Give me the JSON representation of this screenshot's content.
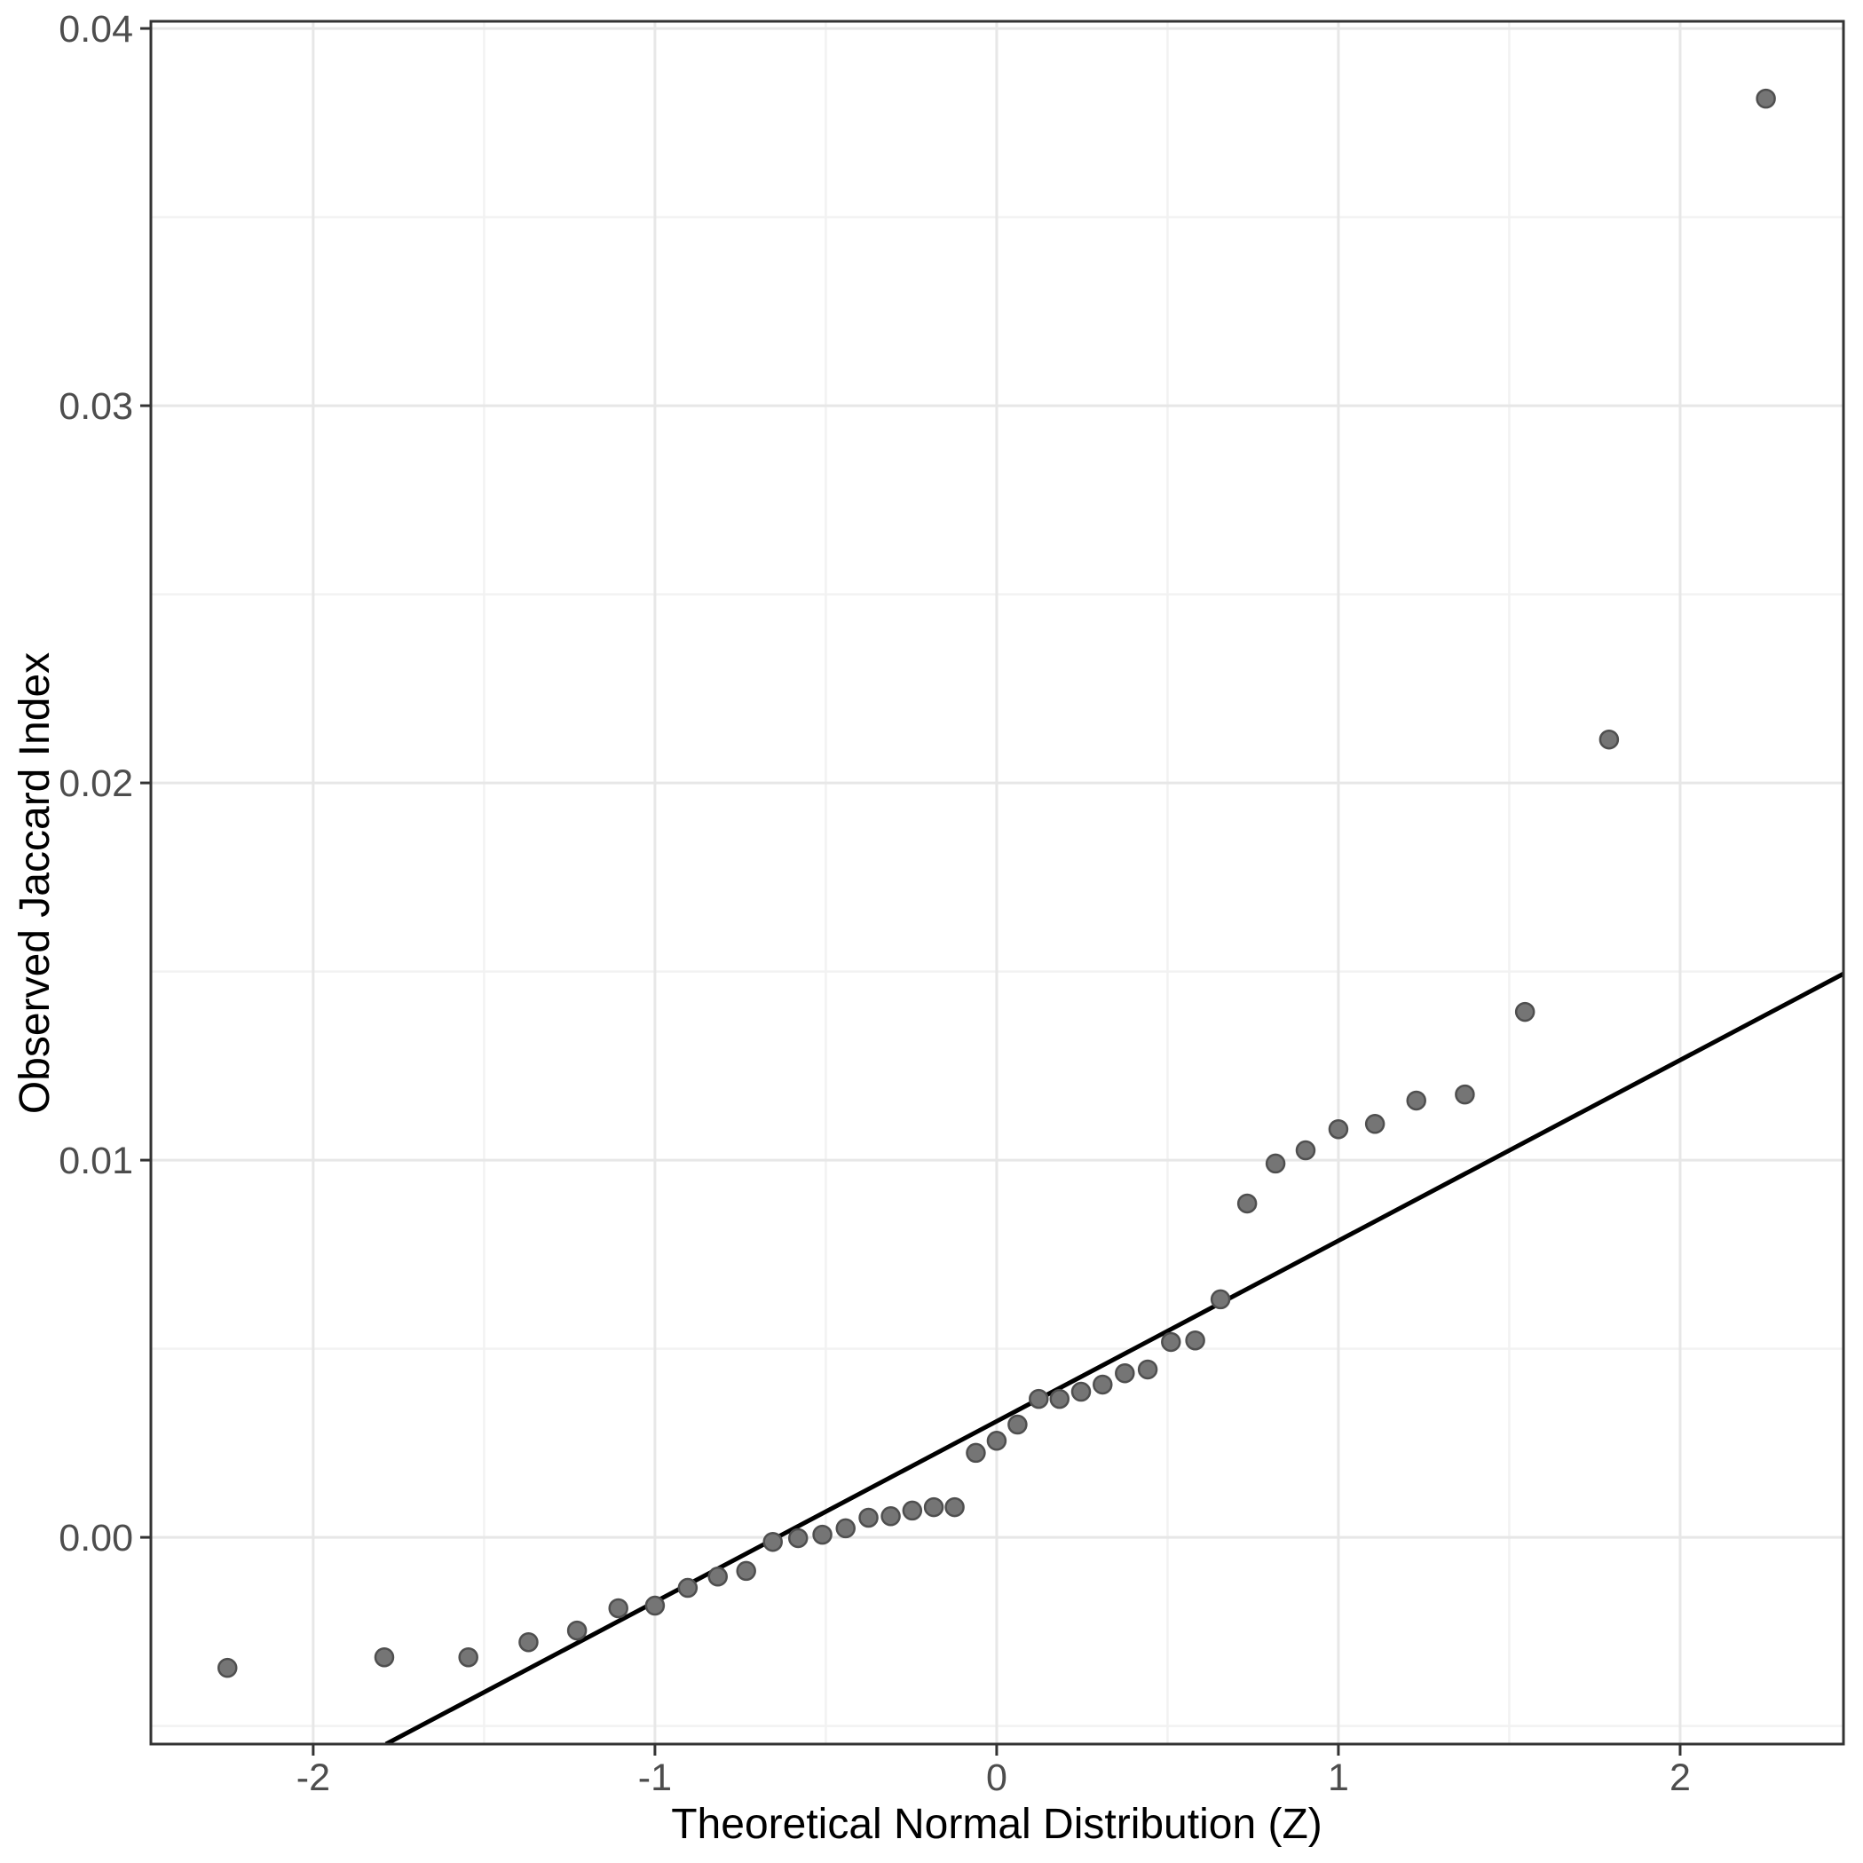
{
  "chart_data": {
    "type": "scatter",
    "title": "",
    "xlabel": "Theoretical Normal Distribution (Z)",
    "ylabel": "Observed Jaccard Index",
    "xlim": [
      -2.475,
      2.478
    ],
    "ylim": [
      -0.00548,
      0.04019
    ],
    "x_ticks": [
      -2,
      -1,
      0,
      1,
      2
    ],
    "x_tick_labels": [
      "-2",
      "-1",
      "0",
      "1",
      "2"
    ],
    "y_ticks": [
      0.0,
      0.01,
      0.02,
      0.03,
      0.04
    ],
    "y_tick_labels": [
      "0.00",
      "0.01",
      "0.02",
      "0.03",
      "0.04"
    ],
    "x_minor_ticks": [
      -1.5,
      -0.5,
      0.5,
      1.5
    ],
    "y_minor_ticks": [
      -0.005,
      0.005,
      0.015,
      0.025,
      0.035
    ],
    "grid": "major+minor",
    "legend": "none",
    "points": [
      [
        -2.251,
        -0.00346
      ],
      [
        -1.792,
        -0.00318
      ],
      [
        -1.546,
        -0.00318
      ],
      [
        -1.37,
        -0.00278
      ],
      [
        -1.228,
        -0.00247
      ],
      [
        -1.107,
        -0.00188
      ],
      [
        -1.0,
        -0.00181
      ],
      [
        -0.904,
        -0.00134
      ],
      [
        -0.816,
        -0.00104
      ],
      [
        -0.733,
        -0.00089
      ],
      [
        -0.655,
        -0.00012
      ],
      [
        -0.581,
        -2e-05
      ],
      [
        -0.51,
        7e-05
      ],
      [
        -0.442,
        0.00024
      ],
      [
        -0.375,
        0.00052
      ],
      [
        -0.31,
        0.00056
      ],
      [
        -0.247,
        0.00071
      ],
      [
        -0.184,
        0.0008
      ],
      [
        -0.123,
        0.0008
      ],
      [
        -0.061,
        0.00224
      ],
      [
        0.0,
        0.00256
      ],
      [
        0.061,
        0.00299
      ],
      [
        0.123,
        0.00367
      ],
      [
        0.184,
        0.00367
      ],
      [
        0.247,
        0.00386
      ],
      [
        0.31,
        0.00405
      ],
      [
        0.375,
        0.00435
      ],
      [
        0.442,
        0.00445
      ],
      [
        0.51,
        0.00518
      ],
      [
        0.581,
        0.00522
      ],
      [
        0.655,
        0.00631
      ],
      [
        0.733,
        0.00885
      ],
      [
        0.816,
        0.00991
      ],
      [
        0.904,
        0.01026
      ],
      [
        1.0,
        0.01082
      ],
      [
        1.107,
        0.01096
      ],
      [
        1.228,
        0.01158
      ],
      [
        1.37,
        0.01174
      ],
      [
        1.546,
        0.01393
      ],
      [
        1.792,
        0.02115
      ],
      [
        2.251,
        0.03814
      ]
    ],
    "ref_line": {
      "x": [
        -1.787,
        2.478
      ],
      "y": [
        -0.00548,
        0.01494
      ],
      "slope": 0.00479,
      "intercept": 0.00308
    }
  },
  "colors": {
    "background": "#ffffff",
    "panel_background": "#ffffff",
    "panel_border": "#333333",
    "grid_major": "#e7e7e7",
    "grid_minor": "#f2f2f2",
    "point_fill": "#757575",
    "point_stroke": "#4f4f4f",
    "ref_line": "#000000",
    "tick_mark": "#333333",
    "tick_label": "#4d4d4d",
    "axis_title": "#000000"
  }
}
